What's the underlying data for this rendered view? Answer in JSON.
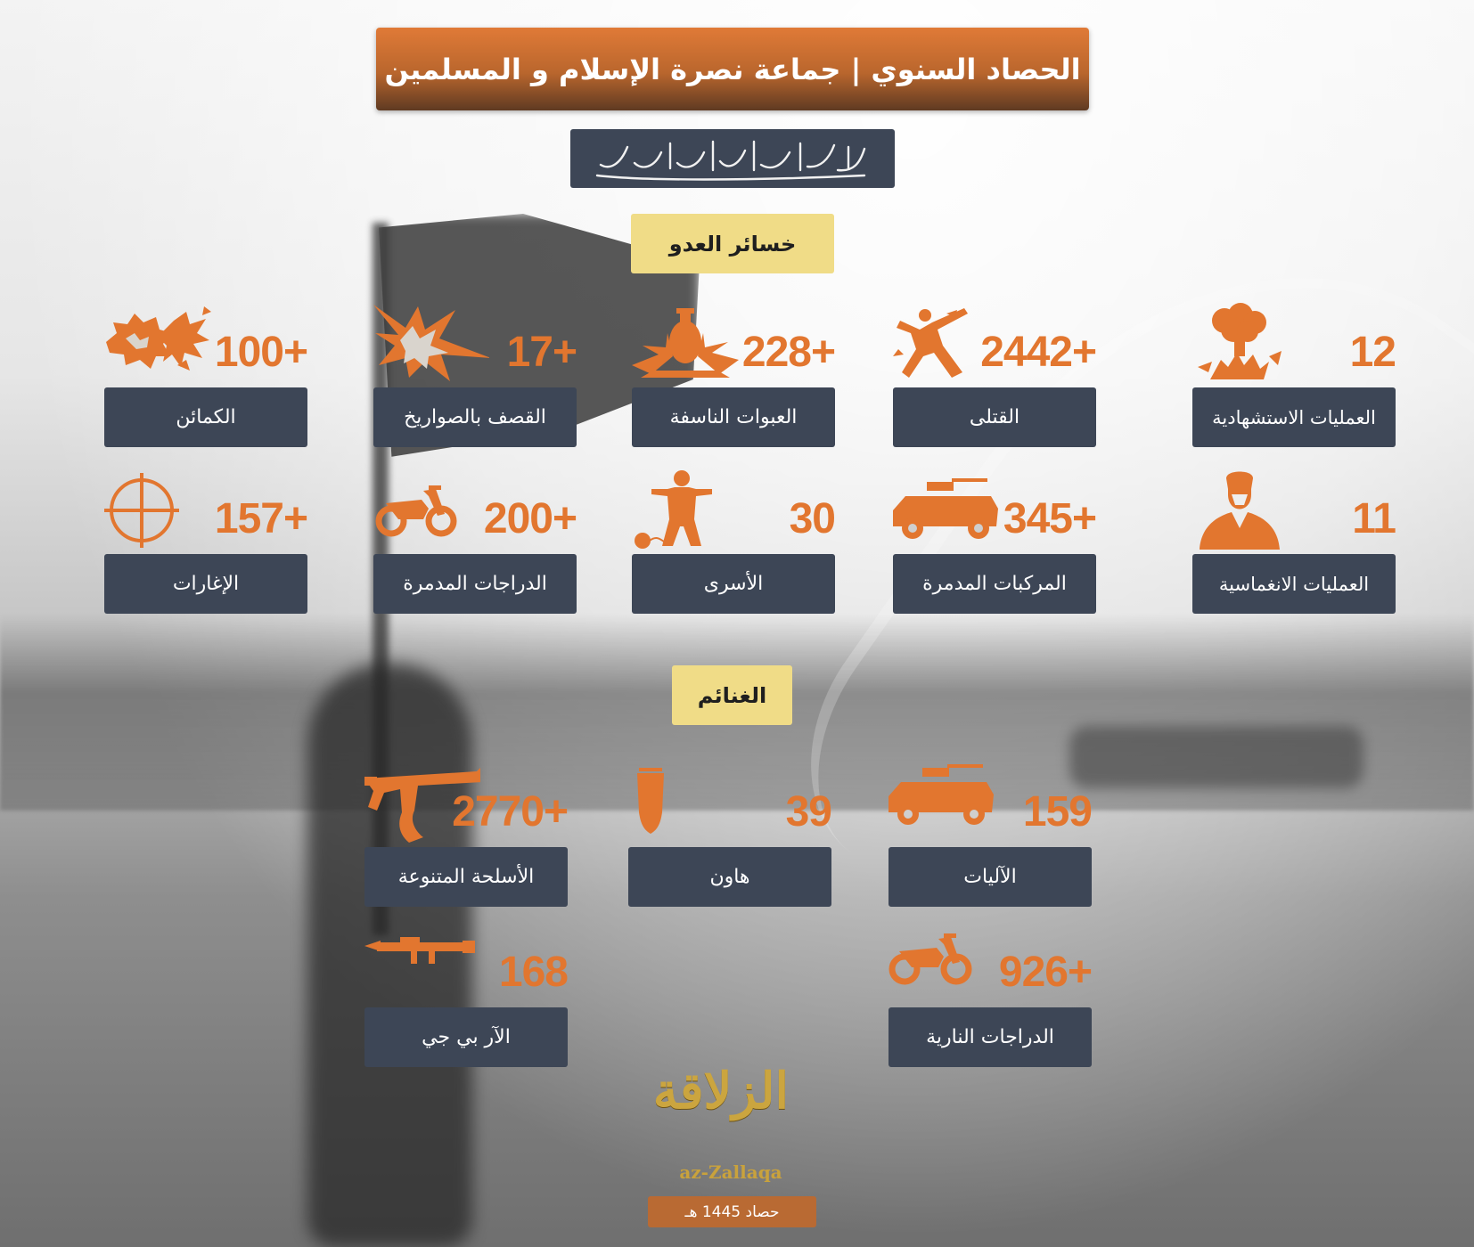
{
  "header": {
    "title": "الحصاد السنوي | جماعة نصرة الإسلام و المسلمين"
  },
  "org_logo": {
    "text": "جماعة نصرة الإسلام والمسلمين"
  },
  "colors": {
    "accent": "#e2762f",
    "label_box": "#3d4656",
    "section_badge": "#f0dc87",
    "header_top": "#e07a37",
    "header_bottom": "#5f3a22"
  },
  "enemy_losses": {
    "section_title": "خسائر العدو",
    "items": [
      {
        "value": "12",
        "label": "العمليات الاستشهادية",
        "icon": "explosion-cloud-icon"
      },
      {
        "value": "2442+",
        "label": "القتلى",
        "icon": "killed-figure-icon"
      },
      {
        "value": "228+",
        "label": "العبوات الناسفة",
        "icon": "ied-bomb-icon"
      },
      {
        "value": "17+",
        "label": "القصف بالصواريخ",
        "icon": "rocket-blast-icon"
      },
      {
        "value": "100+",
        "label": "الكمائن",
        "icon": "ambush-blast-icon"
      },
      {
        "value": "11",
        "label": "العمليات الانغماسية",
        "icon": "fighter-bust-icon"
      },
      {
        "value": "345+",
        "label": "المركبات المدمرة",
        "icon": "armored-vehicle-icon"
      },
      {
        "value": "30",
        "label": "الأسرى",
        "icon": "prisoner-icon"
      },
      {
        "value": "200+",
        "label": "الدراجات المدمرة",
        "icon": "motorcycle-icon"
      },
      {
        "value": "157+",
        "label": "الإغارات",
        "icon": "crosshair-icon"
      }
    ]
  },
  "spoils": {
    "section_title": "الغنائم",
    "items": [
      {
        "value": "159",
        "label": "الآليات",
        "icon": "armored-vehicle-icon"
      },
      {
        "value": "39",
        "label": "هاون",
        "icon": "mortar-shell-icon"
      },
      {
        "value": "2770+",
        "label": "الأسلحة المتنوعة",
        "icon": "rifle-icon"
      },
      {
        "value": "926+",
        "label": "الدراجات النارية",
        "icon": "motorcycle-icon"
      },
      {
        "value": "168",
        "label": "الآر بي جي",
        "icon": "rpg-launcher-icon"
      }
    ]
  },
  "footer": {
    "brand_arabic": "الزلاقة",
    "brand_latin": "az-Zallaqa",
    "caption": "حصاد 1445 هـ"
  }
}
